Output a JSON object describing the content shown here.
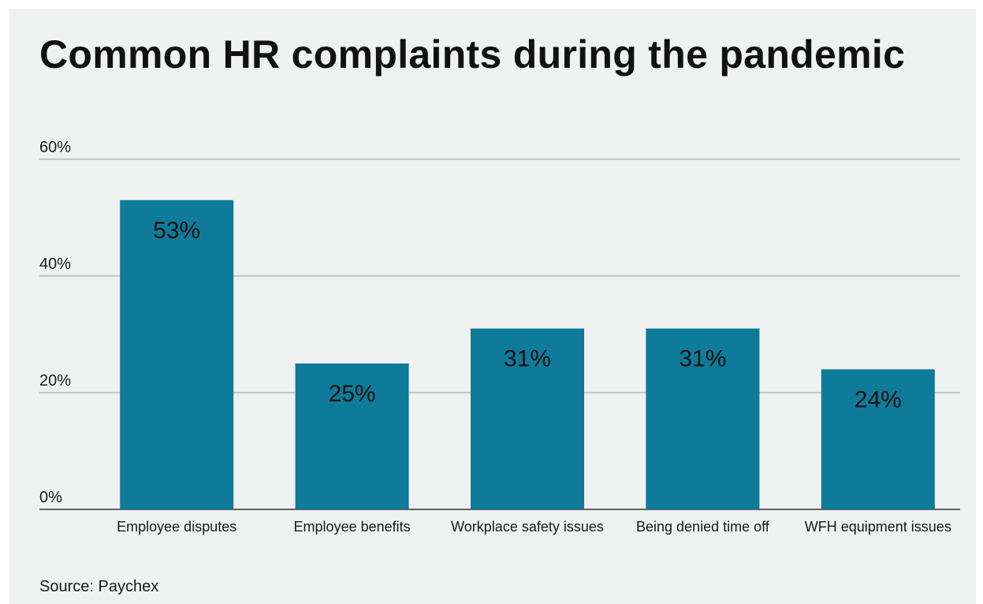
{
  "title": "Common HR complaints during the pandemic",
  "source": "Source: Paychex",
  "colors": {
    "bar": "#0f7b9a",
    "grid": "#9a9a9a",
    "axis": "#333333",
    "text": "#1a1a1a",
    "background": "#f0f1f1"
  },
  "chart_data": {
    "type": "bar",
    "title": "Common HR complaints during the pandemic",
    "xlabel": "",
    "ylabel": "",
    "ylim": [
      0,
      60
    ],
    "y_ticks": [
      0,
      20,
      40,
      60
    ],
    "y_tick_labels": [
      "0%",
      "20%",
      "40%",
      "60%"
    ],
    "grid": true,
    "categories": [
      "Employee disputes",
      "Employee benefits",
      "Workplace safety issues",
      "Being denied time off",
      "WFH equipment issues"
    ],
    "values": [
      53,
      25,
      31,
      31,
      24
    ],
    "data_labels": [
      "53%",
      "25%",
      "31%",
      "31%",
      "24%"
    ]
  }
}
